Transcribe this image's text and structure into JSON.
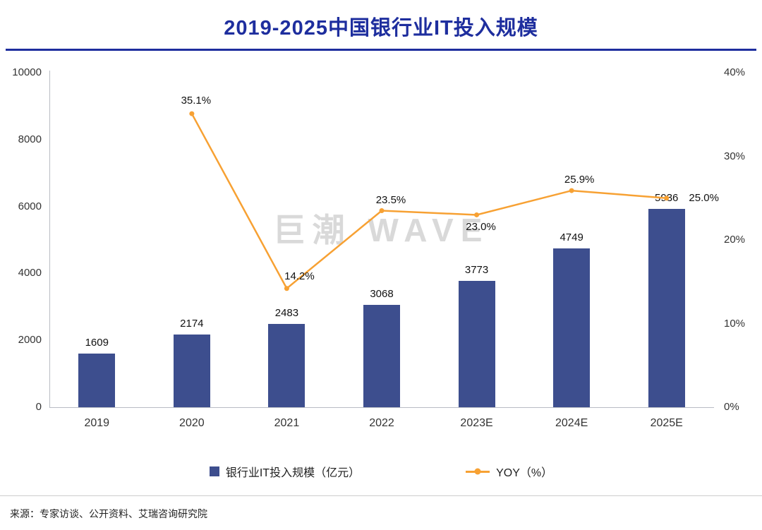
{
  "title": "2019-2025中国银行业IT投入规模",
  "watermark": "巨潮 WAVE",
  "source": "来源：专家访谈、公开资料、艾瑞咨询研究院",
  "legend": {
    "bar": "银行业IT投入规模（亿元）",
    "line": "YOY（%）"
  },
  "colors": {
    "bar": "#3d4e8e",
    "line": "#f7a133",
    "title": "#1e2e9e",
    "watermark": "#d9d9d9"
  },
  "chart_data": {
    "type": "bar+line",
    "title": "2019-2025中国银行业IT投入规模",
    "categories": [
      "2019",
      "2020",
      "2021",
      "2022",
      "2023E",
      "2024E",
      "2025E"
    ],
    "series": [
      {
        "name": "银行业IT投入规模（亿元）",
        "type": "bar",
        "axis": "left",
        "color": "#3d4e8e",
        "values": [
          1609,
          2174,
          2483,
          3068,
          3773,
          4749,
          5936
        ],
        "labels": [
          "1609",
          "2174",
          "2483",
          "3068",
          "3773",
          "4749",
          "5936"
        ]
      },
      {
        "name": "YOY（%）",
        "type": "line",
        "axis": "right",
        "color": "#f7a133",
        "values": [
          null,
          35.1,
          14.2,
          23.5,
          23.0,
          25.9,
          25.0
        ],
        "labels": [
          "",
          "35.1%",
          "14.2%",
          "23.5%",
          "23.0%",
          "25.9%",
          "25.0%"
        ],
        "label_offsets": [
          [
            0,
            0
          ],
          [
            6,
            -18
          ],
          [
            18,
            -17
          ],
          [
            13,
            -15
          ],
          [
            6,
            18
          ],
          [
            11,
            -15
          ],
          [
            53,
            0
          ]
        ]
      }
    ],
    "left_axis": {
      "min": 0,
      "max": 10000,
      "tick_values": [
        0,
        2000,
        4000,
        6000,
        8000,
        10000
      ],
      "tick_labels": [
        "0",
        "2000",
        "4000",
        "6000",
        "8000",
        "10000"
      ]
    },
    "right_axis": {
      "min": 0,
      "max": 40,
      "tick_values": [
        0,
        10,
        20,
        30,
        40
      ],
      "tick_labels": [
        "0%",
        "10%",
        "20%",
        "30%",
        "40%"
      ]
    },
    "grid": false,
    "legend_position": "bottom"
  }
}
